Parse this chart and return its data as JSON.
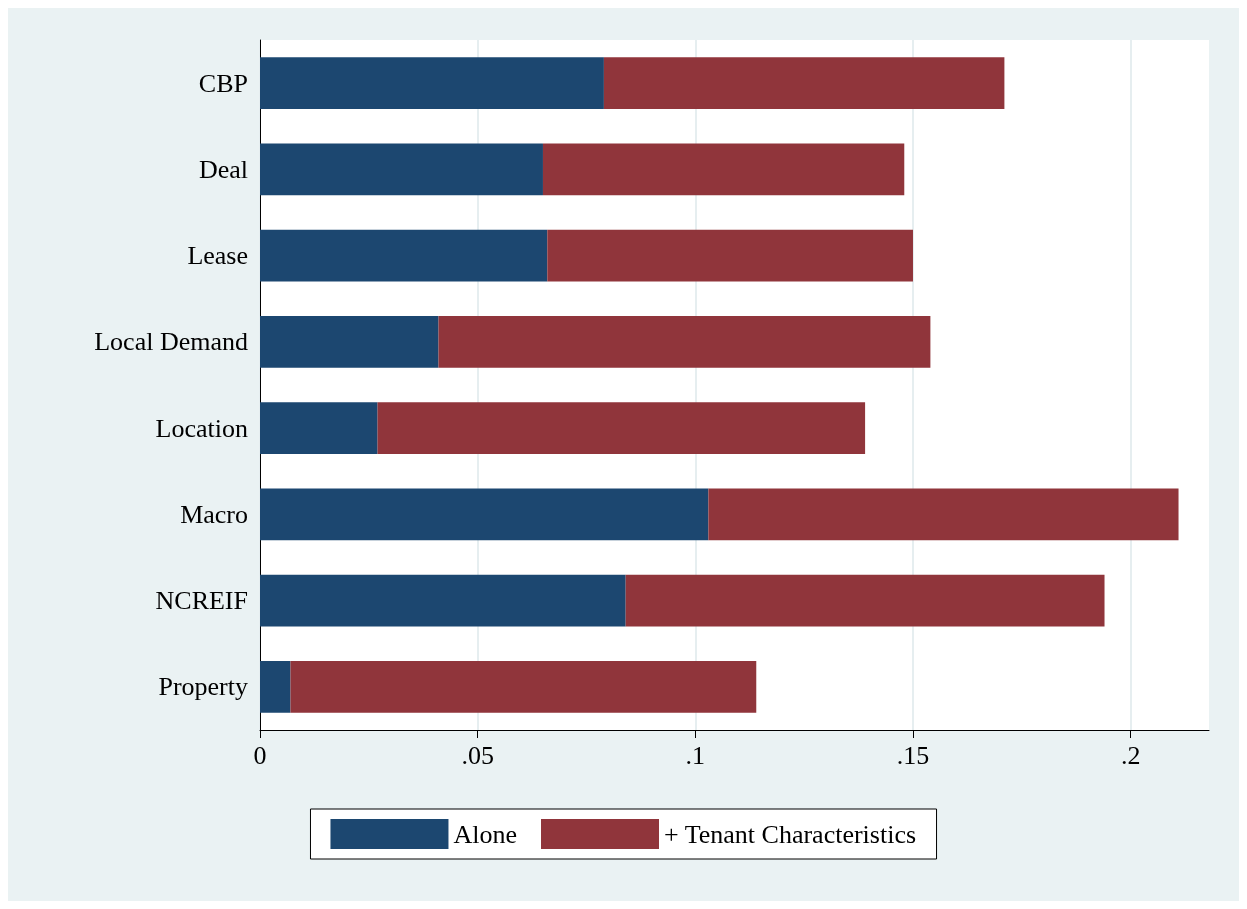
{
  "chart_data": {
    "type": "bar",
    "orientation": "horizontal",
    "stacked": true,
    "categories": [
      "CBP",
      "Deal",
      "Lease",
      "Local Demand",
      "Location",
      "Macro",
      "NCREIF",
      "Property"
    ],
    "series": [
      {
        "name": "Alone",
        "color": "#1c4770",
        "values": [
          0.079,
          0.065,
          0.066,
          0.041,
          0.027,
          0.103,
          0.084,
          0.007
        ]
      },
      {
        "name": "+ Tenant Characteristics",
        "color": "#90353b",
        "values": [
          0.092,
          0.083,
          0.084,
          0.113,
          0.112,
          0.108,
          0.11,
          0.107
        ]
      }
    ],
    "xlim": [
      0,
      0.218
    ],
    "xticks": [
      0,
      {
        "value": 0.05,
        "label": ".05"
      },
      {
        "value": 0.1,
        "label": ".1"
      },
      {
        "value": 0.15,
        "label": ".15"
      },
      {
        "value": 0.2,
        "label": ".2"
      }
    ],
    "grid": "x",
    "legend": "bottom"
  }
}
